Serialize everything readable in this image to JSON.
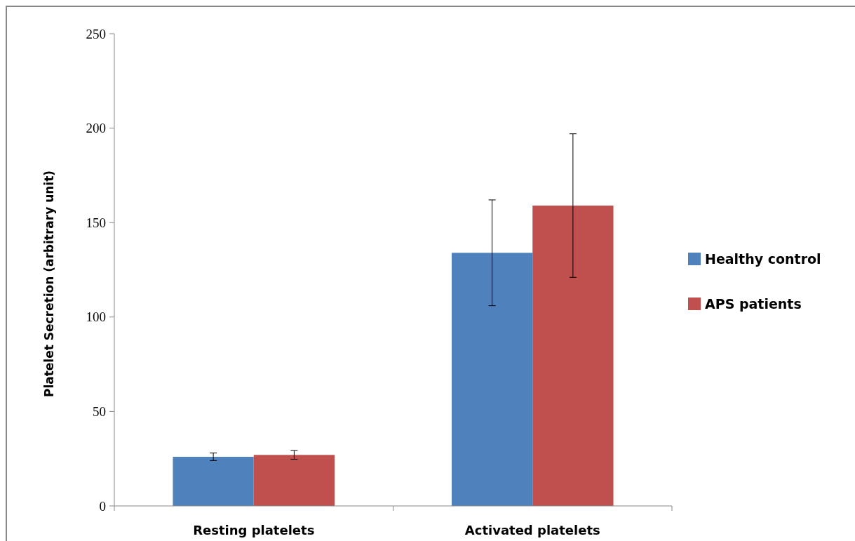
{
  "chart_data": {
    "type": "bar",
    "ylabel": "Platelet Secretion (arbitrary unit)",
    "categories": [
      "Resting platelets",
      "Activated platelets"
    ],
    "series": [
      {
        "name": "Healthy control",
        "color": "#4f81bd",
        "values": [
          26,
          134
        ],
        "errors": [
          2,
          28
        ]
      },
      {
        "name": "APS patients",
        "color": "#c0504d",
        "values": [
          27,
          159
        ],
        "errors": [
          2.3,
          38
        ]
      }
    ],
    "ylim": [
      0,
      250
    ],
    "yticks": [
      0,
      50,
      100,
      150,
      200,
      250
    ],
    "grid": false,
    "legend": "right"
  }
}
